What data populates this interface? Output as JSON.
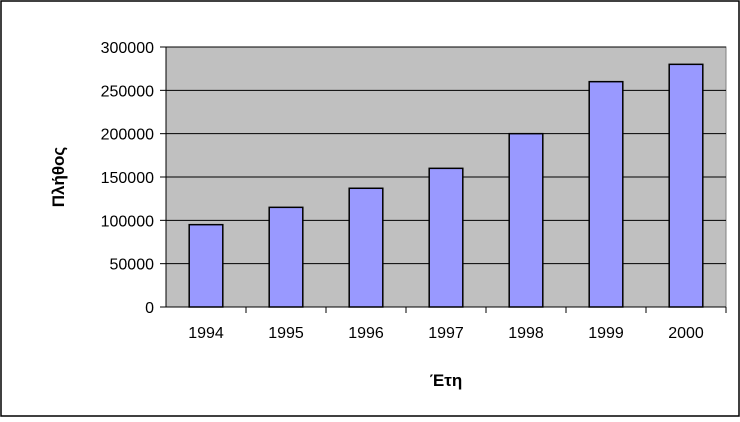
{
  "chart_data": {
    "type": "bar",
    "title": "",
    "xlabel": "Έτη",
    "ylabel": "Πλήθος",
    "categories": [
      "1994",
      "1995",
      "1996",
      "1997",
      "1998",
      "1999",
      "2000"
    ],
    "series": [
      {
        "values": [
          95000,
          115000,
          137000,
          160000,
          200000,
          260000,
          280000
        ]
      }
    ],
    "ylim": [
      0,
      300000
    ],
    "yticks": [
      0,
      50000,
      100000,
      150000,
      200000,
      250000,
      300000
    ],
    "grid": true,
    "legend": "none",
    "colors": {
      "plot_background": "#c0c0c0",
      "bar_fill": "#9999ff",
      "bar_stroke": "#000000",
      "gridline": "#000000",
      "frame": "#000000"
    }
  }
}
